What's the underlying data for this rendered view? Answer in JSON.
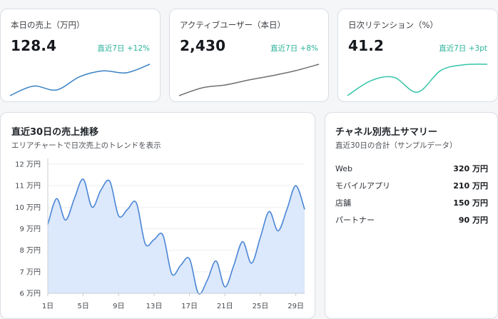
{
  "kpis": [
    {
      "title": "本日の売上（万円）",
      "value": "128.4",
      "delta": "直近7日 +12%",
      "spark": [
        1,
        3,
        2.2,
        5,
        6.2,
        5.8,
        7.6
      ],
      "color": "#3b82c4"
    },
    {
      "title": "アクティブユーザー（本日）",
      "value": "2,430",
      "delta": "直近7日 +8%",
      "spark": [
        1,
        2.1,
        2.5,
        3.2,
        3.8,
        4.5,
        5.4
      ],
      "color": "#707070"
    },
    {
      "title": "日次リテンション（%）",
      "value": "41.2",
      "delta": "直近7日 +3pt",
      "spark": [
        1,
        3.6,
        4.2,
        1.6,
        5.4,
        6.4,
        6.5
      ],
      "color": "#35c4a8"
    }
  ],
  "main": {
    "title": "直近30日の売上推移",
    "subtitle": "エリアチャートで日次売上のトレンドを表示"
  },
  "chart_data": {
    "type": "area",
    "x": [
      1,
      2,
      3,
      4,
      5,
      6,
      7,
      8,
      9,
      10,
      11,
      12,
      13,
      14,
      15,
      16,
      17,
      18,
      19,
      20,
      21,
      22,
      23,
      24,
      25,
      26,
      27,
      28,
      29,
      30
    ],
    "values": [
      9.2,
      10.4,
      9.4,
      10.4,
      11.3,
      10.0,
      10.8,
      11.2,
      9.6,
      9.9,
      10.2,
      8.3,
      8.5,
      8.7,
      6.9,
      7.3,
      7.6,
      6.0,
      6.6,
      7.5,
      6.3,
      7.3,
      8.4,
      7.4,
      8.6,
      9.8,
      8.9,
      9.9,
      11.0,
      9.9
    ],
    "x_ticks": [
      1,
      5,
      9,
      13,
      17,
      21,
      25,
      29
    ],
    "x_tick_labels": [
      "1日",
      "5日",
      "9日",
      "13日",
      "17日",
      "21日",
      "25日",
      "29日"
    ],
    "y_ticks": [
      6,
      7,
      8,
      9,
      10,
      11,
      12
    ],
    "y_tick_labels": [
      "6 万円",
      "7 万円",
      "8 万円",
      "9 万円",
      "10 万円",
      "11 万円",
      "12 万円"
    ],
    "ylim": [
      6,
      12
    ],
    "line_color": "#4a86d6",
    "fill_color": "#dce8fb",
    "grid": true
  },
  "summary": {
    "title": "チャネル別売上サマリー",
    "subtitle": "直近30日の合計（サンプルデータ）",
    "rows": [
      {
        "name": "Web",
        "value": "320 万円"
      },
      {
        "name": "モバイルアプリ",
        "value": "210 万円"
      },
      {
        "name": "店舗",
        "value": "150 万円"
      },
      {
        "name": "パートナー",
        "value": "90 万円"
      }
    ]
  }
}
